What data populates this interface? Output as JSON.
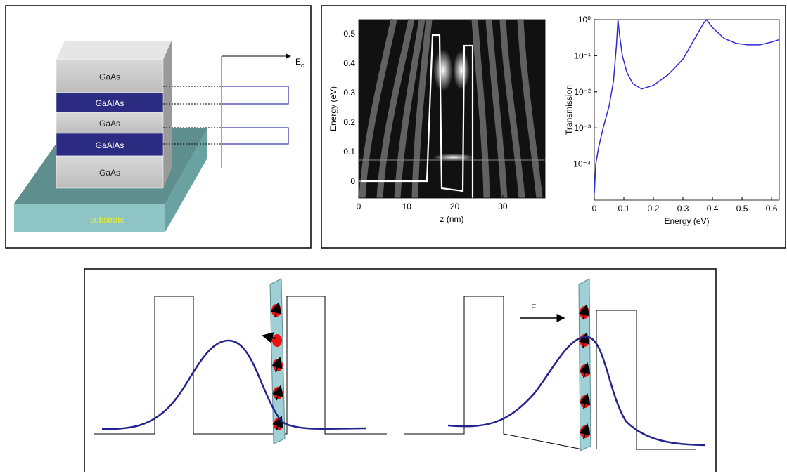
{
  "structure": {
    "layers": [
      "GaAs",
      "GaAlAs",
      "GaAs",
      "GaAlAs",
      "GaAs"
    ],
    "substrate": "substrate",
    "band_label": "E",
    "band_label_sub": "c"
  },
  "chart_data": [
    {
      "type": "image",
      "xlabel": "z (nm)",
      "ylabel": "Energy (eV)",
      "xlim": [
        0,
        38.8
      ],
      "ylim": [
        -0.057,
        0.547
      ],
      "xticks": [
        0,
        10,
        20,
        30
      ],
      "yticks": [
        0,
        0.1,
        0.2,
        0.3,
        0.4,
        0.5
      ]
    },
    {
      "type": "line",
      "xlabel": "Energy (eV)",
      "ylabel": "Transmission",
      "log_y": true,
      "color": "#2b2bd6",
      "xlim": [
        0,
        0.626
      ],
      "ylim": [
        1e-05,
        1
      ],
      "xticks": [
        0,
        0.1,
        0.2,
        0.3,
        0.4,
        0.5,
        0.6
      ],
      "yticks": [
        {
          "value": 0.0001,
          "label": "10⁻⁴"
        },
        {
          "value": 0.001,
          "label": "10⁻³"
        },
        {
          "value": 0.01,
          "label": "10⁻²"
        },
        {
          "value": 0.1,
          "label": "10⁻¹"
        },
        {
          "value": 1,
          "label": "10⁰"
        }
      ],
      "x": [
        0,
        0.005,
        0.015,
        0.03,
        0.05,
        0.065,
        0.075,
        0.08,
        0.085,
        0.095,
        0.11,
        0.13,
        0.16,
        0.2,
        0.25,
        0.3,
        0.34,
        0.37,
        0.38,
        0.4,
        0.44,
        0.48,
        0.52,
        0.56,
        0.6,
        0.626
      ],
      "values": [
        1.5e-05,
        0.0001,
        0.0003,
        0.001,
        0.004,
        0.02,
        0.2,
        1,
        0.4,
        0.1,
        0.035,
        0.017,
        0.012,
        0.015,
        0.03,
        0.08,
        0.3,
        0.8,
        1,
        0.6,
        0.3,
        0.22,
        0.2,
        0.2,
        0.24,
        0.28
      ]
    }
  ],
  "field": {
    "label": "F"
  }
}
